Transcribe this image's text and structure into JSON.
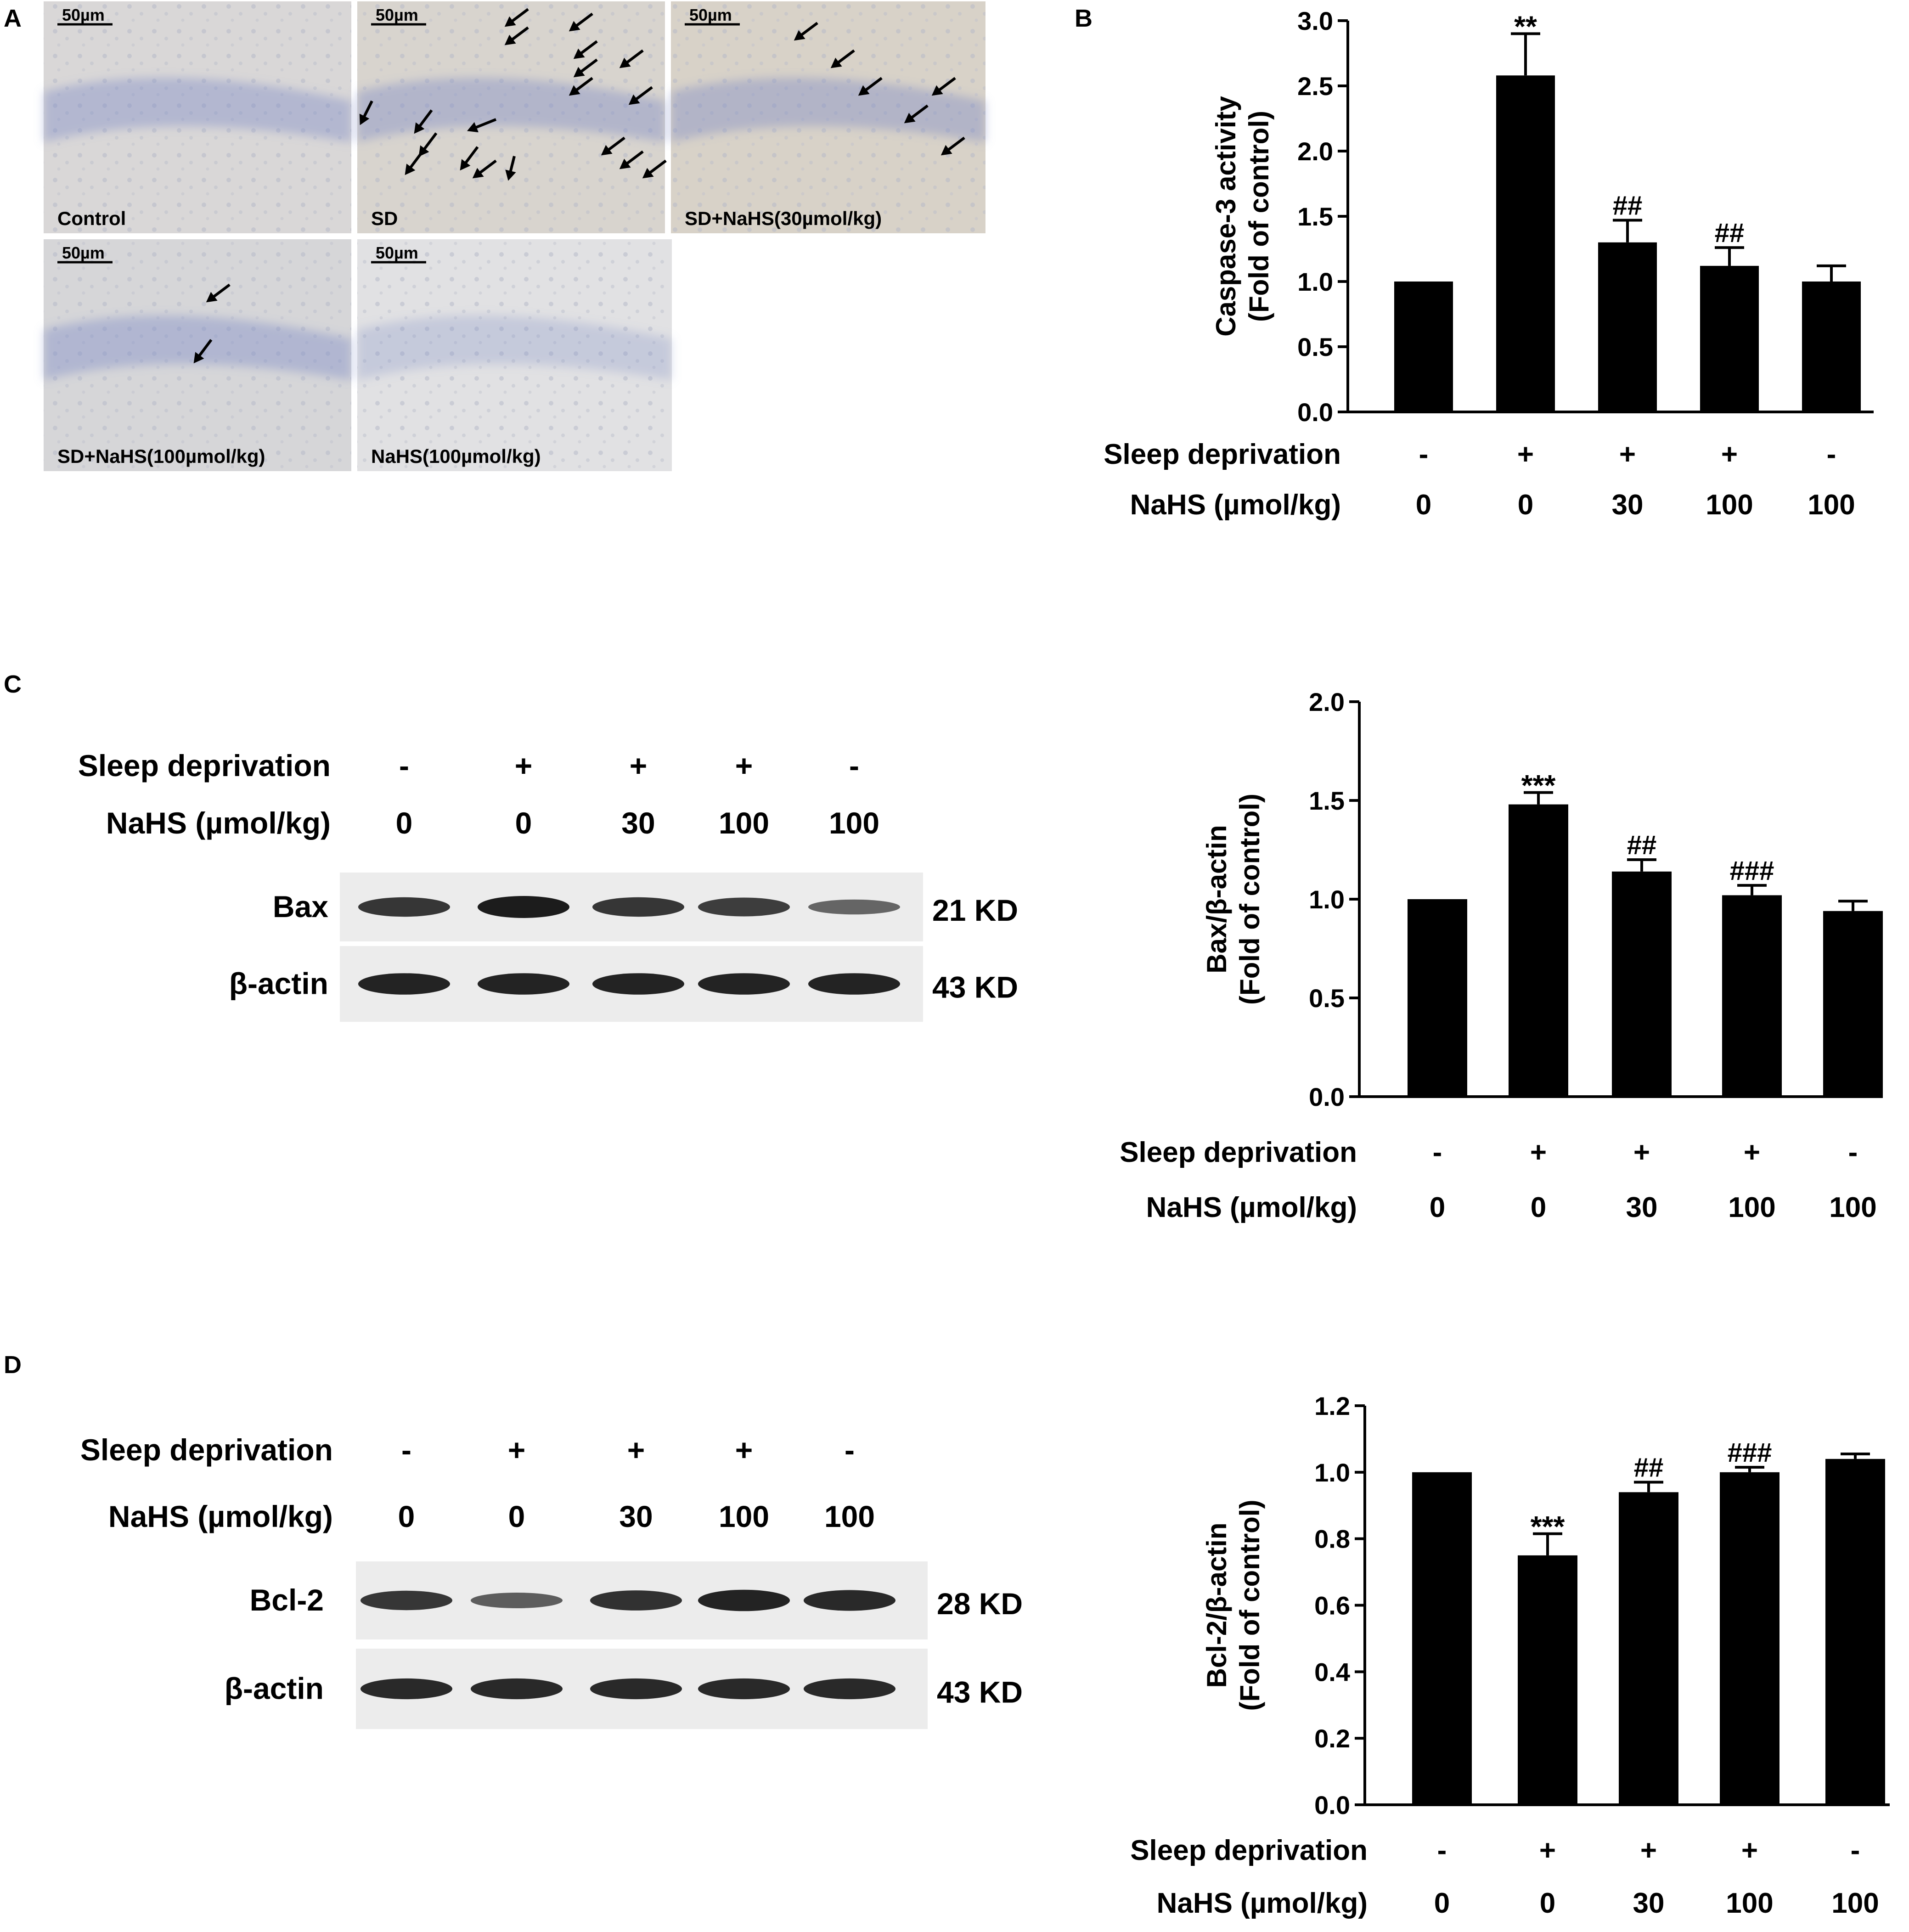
{
  "panel_letters": [
    "A",
    "B",
    "C",
    "D"
  ],
  "panel_a": {
    "scale_bar": "50µm",
    "micrographs": [
      {
        "label": "Control"
      },
      {
        "label": "SD"
      },
      {
        "label": "SD+NaHS(30µmol/kg)"
      },
      {
        "label": "SD+NaHS(100µmol/kg)"
      },
      {
        "label": "NaHS(100µmol/kg)"
      }
    ]
  },
  "treatments": {
    "sleep_label": "Sleep deprivation",
    "nahs_label": "NaHS (µmol/kg)",
    "sleep": [
      "-",
      "+",
      "+",
      "+",
      "-"
    ],
    "nahs": [
      "0",
      "0",
      "30",
      "100",
      "100"
    ]
  },
  "blots": {
    "c": {
      "protein": "Bax",
      "protein_kd": "21 KD",
      "actin": "β-actin",
      "actin_kd": "43 KD",
      "protein_intensity": [
        0.8,
        1.0,
        0.8,
        0.75,
        0.45
      ],
      "actin_intensity": [
        0.95,
        0.95,
        0.95,
        0.95,
        0.95
      ]
    },
    "d": {
      "protein": "Bcl-2",
      "protein_kd": "28 KD",
      "actin": "β-actin",
      "actin_kd": "43 KD",
      "protein_intensity": [
        0.8,
        0.5,
        0.85,
        0.95,
        0.9
      ],
      "actin_intensity": [
        0.9,
        0.9,
        0.9,
        0.9,
        0.9
      ]
    }
  },
  "chart_data": [
    {
      "type": "bar",
      "panel": "B",
      "ylabel": "Caspase-3 activity",
      "ylabel2": "(Fold of control)",
      "ylim": [
        0,
        3.0
      ],
      "yticks": [
        "0.0",
        "0.5",
        "1.0",
        "1.5",
        "2.0",
        "2.5",
        "3.0"
      ],
      "categories": [
        "Control",
        "SD",
        "SD+NaHS 30",
        "SD+NaHS 100",
        "NaHS 100"
      ],
      "values": [
        1.0,
        2.58,
        1.3,
        1.12,
        1.0
      ],
      "errors": [
        0,
        0.32,
        0.17,
        0.14,
        0.12
      ],
      "annotations": [
        "",
        "**",
        "##",
        "##",
        ""
      ],
      "color": "#000000"
    },
    {
      "type": "bar",
      "panel": "C",
      "ylabel": "Bax/β-actin",
      "ylabel2": "(Fold of control)",
      "ylim": [
        0,
        2.0
      ],
      "yticks": [
        "0.0",
        "0.5",
        "1.0",
        "1.5",
        "2.0"
      ],
      "categories": [
        "Control",
        "SD",
        "SD+NaHS 30",
        "SD+NaHS 100",
        "NaHS 100"
      ],
      "values": [
        1.0,
        1.48,
        1.14,
        1.02,
        0.94
      ],
      "errors": [
        0,
        0.06,
        0.06,
        0.05,
        0.05
      ],
      "annotations": [
        "",
        "***",
        "##",
        "###",
        ""
      ],
      "color": "#000000"
    },
    {
      "type": "bar",
      "panel": "D",
      "ylabel": "Bcl-2/β-actin",
      "ylabel2": "(Fold of control)",
      "ylim": [
        0,
        1.2
      ],
      "yticks": [
        "0.0",
        "0.2",
        "0.4",
        "0.6",
        "0.8",
        "1.0",
        "1.2"
      ],
      "categories": [
        "Control",
        "SD",
        "SD+NaHS 30",
        "SD+NaHS 100",
        "NaHS 100"
      ],
      "values": [
        1.0,
        0.75,
        0.94,
        1.0,
        1.04
      ],
      "errors": [
        0,
        0.065,
        0.03,
        0.015,
        0.015
      ],
      "annotations": [
        "",
        "***",
        "##",
        "###",
        ""
      ],
      "color": "#000000"
    }
  ]
}
